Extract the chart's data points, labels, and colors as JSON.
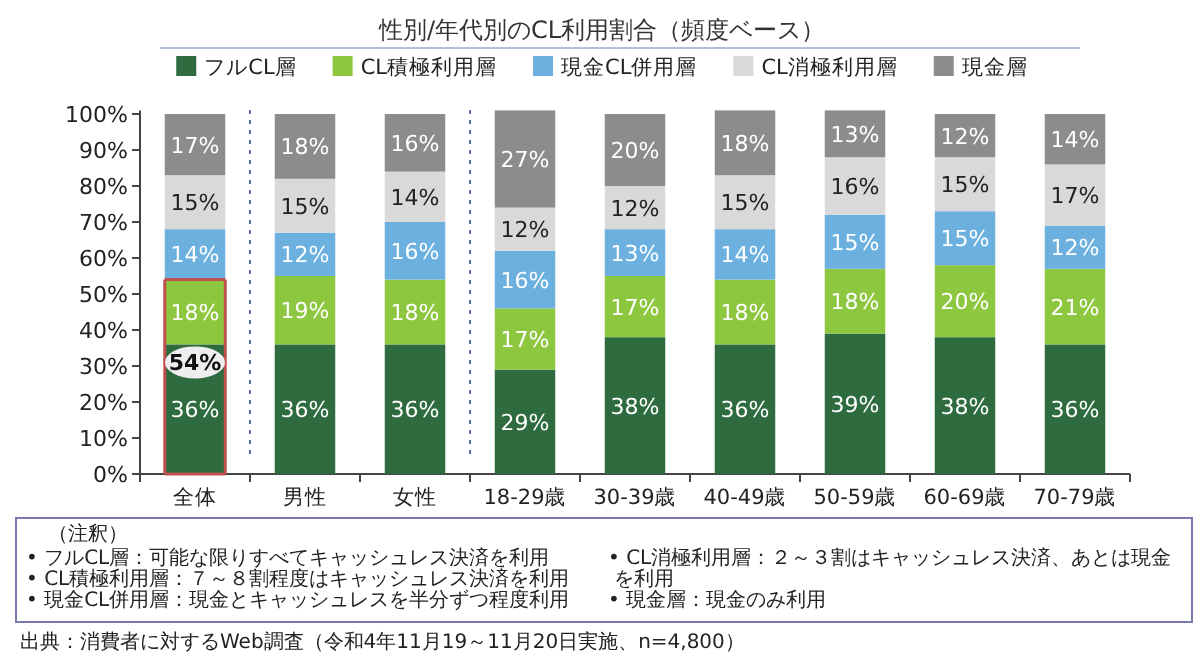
{
  "chart_data": {
    "type": "bar",
    "stacked": true,
    "title": "性別/年代別のCL利用割合（頻度ベース）",
    "categories": [
      "全体",
      "男性",
      "女性",
      "18-29歳",
      "30-39歳",
      "40-49歳",
      "50-59歳",
      "60-69歳",
      "70-79歳"
    ],
    "series": [
      {
        "name": "フルCL層",
        "color": "#2e6b3f",
        "values": [
          36,
          36,
          36,
          29,
          38,
          36,
          39,
          38,
          36
        ],
        "value_labels": [
          "36%",
          "36%",
          "36%",
          "29%",
          "38%",
          "36%",
          "39%",
          "38%",
          "36%"
        ]
      },
      {
        "name": "CL積極利用層",
        "color": "#8dc63f",
        "values": [
          18,
          19,
          18,
          17,
          17,
          18,
          18,
          20,
          21
        ],
        "value_labels": [
          "18%",
          "19%",
          "18%",
          "17%",
          "17%",
          "18%",
          "18%",
          "20%",
          "21%"
        ]
      },
      {
        "name": "現金CL併用層",
        "color": "#6cb0e0",
        "values": [
          14,
          12,
          16,
          16,
          13,
          14,
          15,
          15,
          12
        ],
        "value_labels": [
          "14%",
          "12%",
          "16%",
          "16%",
          "13%",
          "14%",
          "15%",
          "15%",
          "12%"
        ]
      },
      {
        "name": "CL消極利用層",
        "color": "#d9d9d9",
        "values": [
          15,
          15,
          14,
          12,
          12,
          15,
          16,
          15,
          17
        ],
        "value_labels": [
          "15%",
          "15%",
          "14%",
          "12%",
          "12%",
          "15%",
          "16%",
          "15%",
          "17%"
        ]
      },
      {
        "name": "現金層",
        "color": "#8c8c8c",
        "values": [
          17,
          18,
          16,
          27,
          20,
          18,
          13,
          12,
          14
        ],
        "value_labels": [
          "17%",
          "18%",
          "16%",
          "27%",
          "20%",
          "18%",
          "13%",
          "12%",
          "14%"
        ]
      }
    ],
    "ylim": [
      0,
      101
    ],
    "yticks": [
      {
        "value": 0,
        "label": "0%"
      },
      {
        "value": 10,
        "label": "10%"
      },
      {
        "value": 20,
        "label": "20%"
      },
      {
        "value": 30,
        "label": "30%"
      },
      {
        "value": 40,
        "label": "40%"
      },
      {
        "value": 50,
        "label": "50%"
      },
      {
        "value": 60,
        "label": "60%"
      },
      {
        "value": 70,
        "label": "70%"
      },
      {
        "value": 80,
        "label": "80%"
      },
      {
        "value": 90,
        "label": "90%"
      },
      {
        "value": 100,
        "label": "100%"
      }
    ],
    "legend": "top",
    "annotations": [
      {
        "text": "54%",
        "x": "全体",
        "y": 31
      },
      "（注釈）",
      "• フルCL層：可能な限りすべてキャッシュレス決済を利用",
      "• CL積極利用層：７～８割程度はキャッシュレス決済を利用",
      "• 現金CL併用層：現金とキャッシュレスを半分ずつ程度利用",
      "• CL消極利用層：２～３割はキャッシュレス決済、あとは現金を利用",
      "• 現金層：現金のみ利用",
      "出典：消費者に対するWeb調査（令和4年11月19～11月20日実施、n=4,800）"
    ]
  }
}
